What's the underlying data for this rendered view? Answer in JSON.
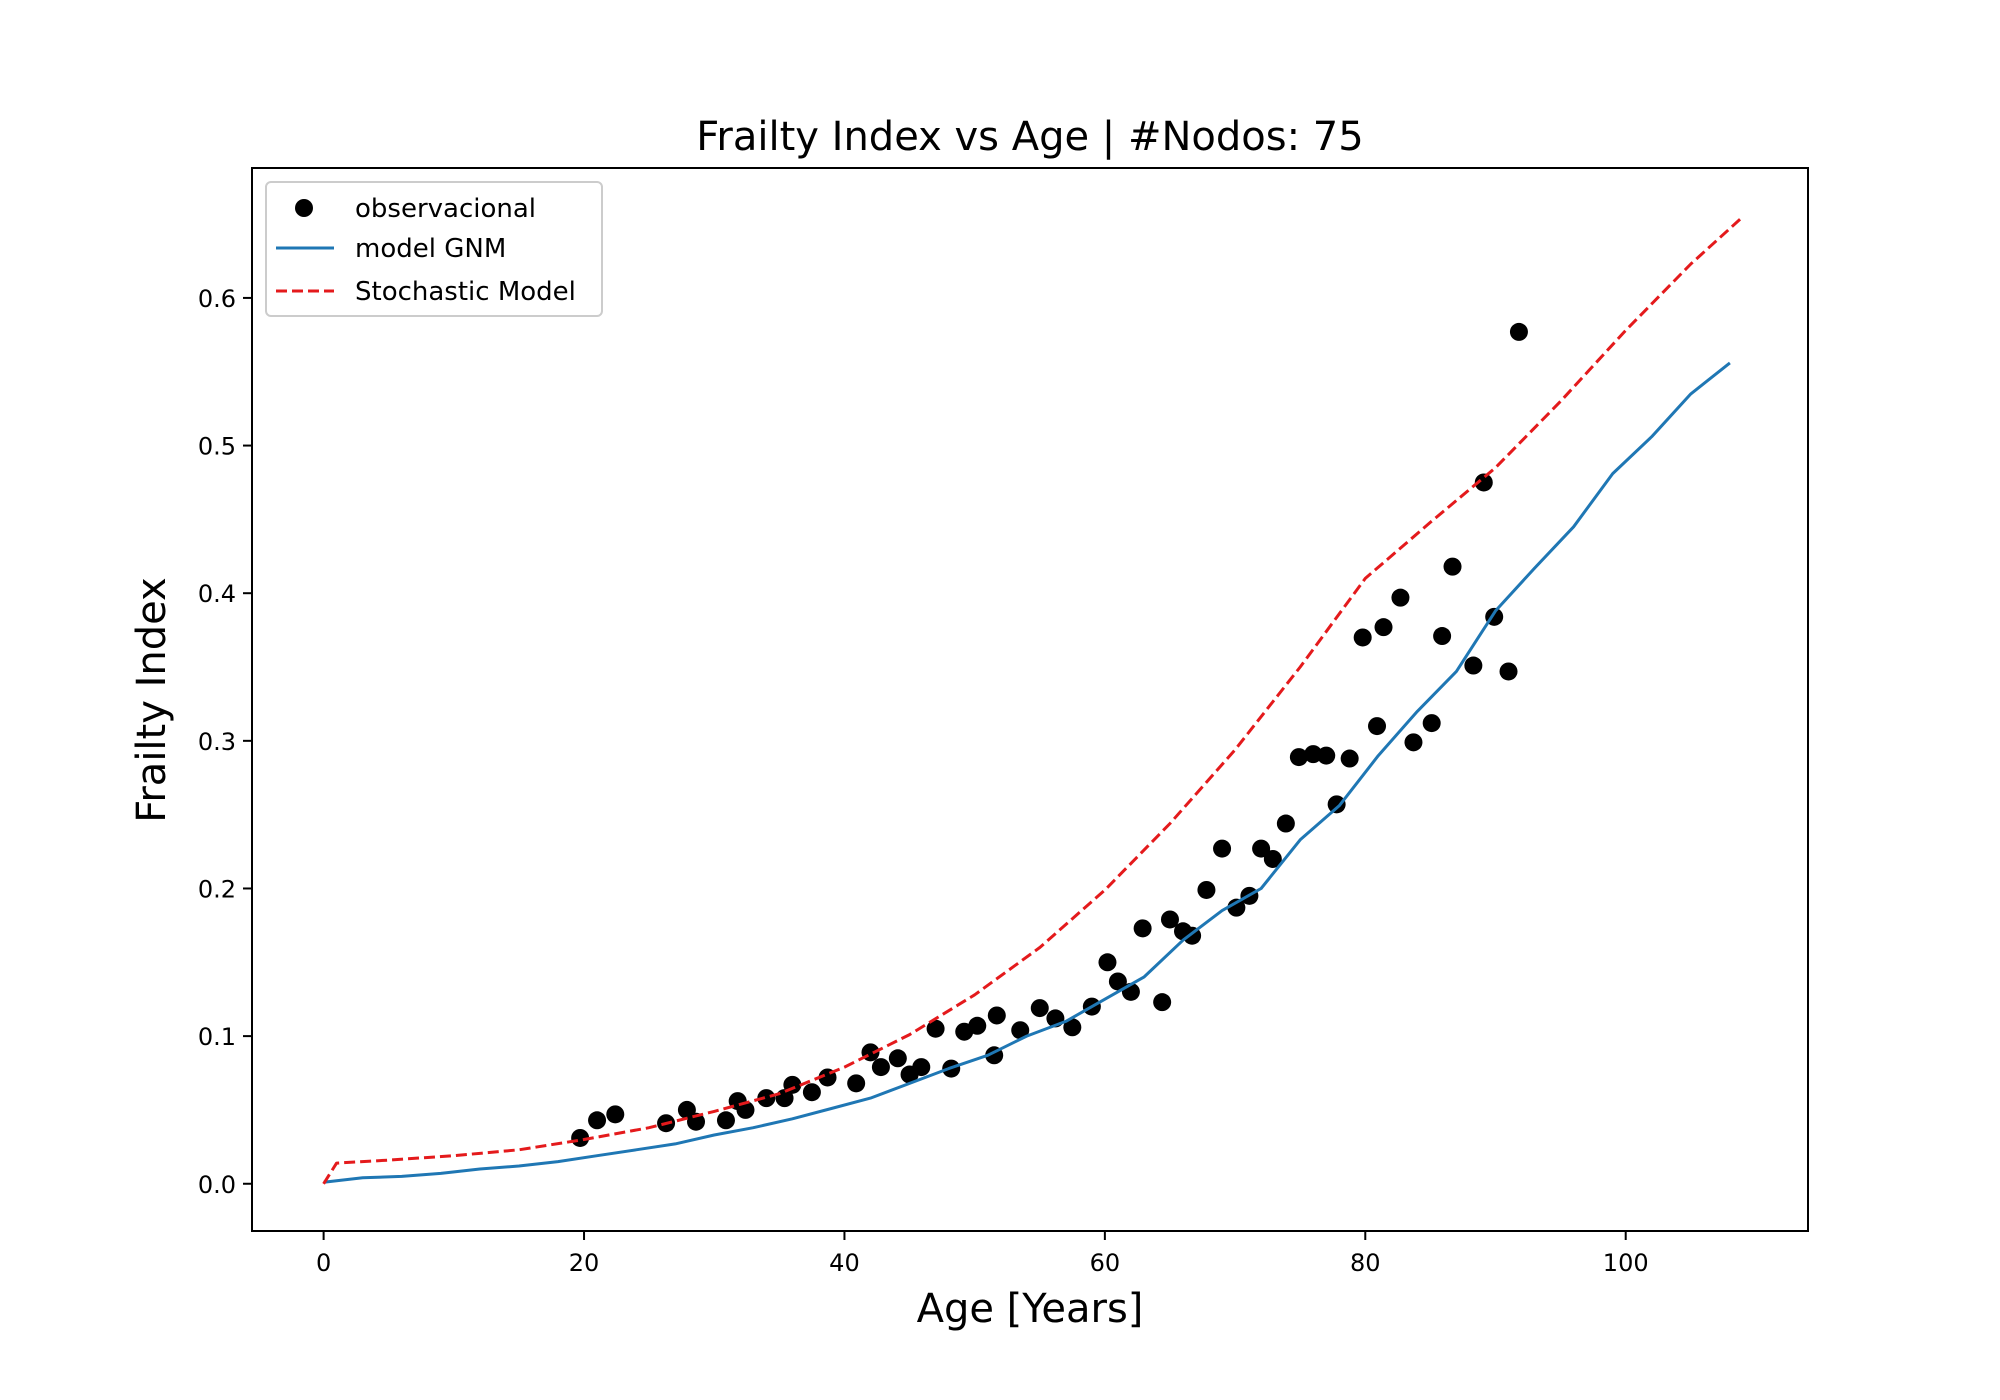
{
  "chart_data": {
    "type": "line",
    "title": "Frailty Index vs Age | #Nodos: 75",
    "xlabel": "Age [Years]",
    "ylabel": "Frailty Index",
    "xlim": [
      -5.5,
      114
    ],
    "ylim": [
      -0.032,
      0.688
    ],
    "xticks": [
      0,
      20,
      40,
      60,
      80,
      100
    ],
    "yticks": [
      0.0,
      0.1,
      0.2,
      0.3,
      0.4,
      0.5,
      0.6
    ],
    "grid": false,
    "legend_position": "top-left",
    "series": [
      {
        "name": "observacional",
        "kind": "scatter",
        "color": "#000000",
        "points": [
          [
            19.7,
            0.031
          ],
          [
            21.0,
            0.043
          ],
          [
            22.4,
            0.047
          ],
          [
            26.3,
            0.041
          ],
          [
            27.9,
            0.05
          ],
          [
            28.6,
            0.042
          ],
          [
            30.9,
            0.043
          ],
          [
            31.8,
            0.056
          ],
          [
            32.4,
            0.05
          ],
          [
            34.0,
            0.058
          ],
          [
            35.4,
            0.058
          ],
          [
            36.0,
            0.067
          ],
          [
            37.5,
            0.062
          ],
          [
            38.7,
            0.072
          ],
          [
            40.9,
            0.068
          ],
          [
            42.0,
            0.089
          ],
          [
            42.8,
            0.079
          ],
          [
            44.1,
            0.085
          ],
          [
            45.0,
            0.074
          ],
          [
            45.9,
            0.079
          ],
          [
            47.0,
            0.105
          ],
          [
            48.2,
            0.078
          ],
          [
            49.2,
            0.103
          ],
          [
            50.2,
            0.107
          ],
          [
            51.5,
            0.087
          ],
          [
            51.7,
            0.114
          ],
          [
            53.5,
            0.104
          ],
          [
            55.0,
            0.119
          ],
          [
            56.2,
            0.112
          ],
          [
            57.5,
            0.106
          ],
          [
            59.0,
            0.12
          ],
          [
            60.2,
            0.15
          ],
          [
            61.0,
            0.137
          ],
          [
            62.0,
            0.13
          ],
          [
            62.9,
            0.173
          ],
          [
            64.4,
            0.123
          ],
          [
            65.0,
            0.179
          ],
          [
            66.0,
            0.171
          ],
          [
            66.7,
            0.168
          ],
          [
            67.8,
            0.199
          ],
          [
            69.0,
            0.227
          ],
          [
            70.1,
            0.187
          ],
          [
            71.1,
            0.195
          ],
          [
            72.0,
            0.227
          ],
          [
            72.9,
            0.22
          ],
          [
            73.9,
            0.244
          ],
          [
            74.9,
            0.289
          ],
          [
            76.0,
            0.291
          ],
          [
            77.0,
            0.29
          ],
          [
            77.8,
            0.257
          ],
          [
            78.8,
            0.288
          ],
          [
            79.8,
            0.37
          ],
          [
            80.9,
            0.31
          ],
          [
            81.4,
            0.377
          ],
          [
            82.7,
            0.397
          ],
          [
            83.7,
            0.299
          ],
          [
            85.1,
            0.312
          ],
          [
            85.9,
            0.371
          ],
          [
            86.7,
            0.418
          ],
          [
            88.3,
            0.351
          ],
          [
            89.1,
            0.475
          ],
          [
            89.9,
            0.384
          ],
          [
            91.0,
            0.347
          ],
          [
            91.8,
            0.577
          ]
        ]
      },
      {
        "name": "model GNM",
        "kind": "line",
        "color": "#1f77b4",
        "points": [
          [
            0,
            0.001
          ],
          [
            3,
            0.004
          ],
          [
            6,
            0.005
          ],
          [
            9,
            0.007
          ],
          [
            12,
            0.01
          ],
          [
            15,
            0.012
          ],
          [
            18,
            0.015
          ],
          [
            21,
            0.019
          ],
          [
            24,
            0.023
          ],
          [
            27,
            0.027
          ],
          [
            30,
            0.033
          ],
          [
            33,
            0.038
          ],
          [
            36,
            0.044
          ],
          [
            39,
            0.051
          ],
          [
            42,
            0.058
          ],
          [
            45,
            0.068
          ],
          [
            48,
            0.078
          ],
          [
            51,
            0.087
          ],
          [
            54,
            0.1
          ],
          [
            57,
            0.11
          ],
          [
            60,
            0.125
          ],
          [
            63,
            0.14
          ],
          [
            66,
            0.165
          ],
          [
            69,
            0.185
          ],
          [
            72,
            0.2
          ],
          [
            75,
            0.233
          ],
          [
            78,
            0.256
          ],
          [
            81,
            0.29
          ],
          [
            84,
            0.32
          ],
          [
            87,
            0.347
          ],
          [
            90,
            0.388
          ],
          [
            93,
            0.417
          ],
          [
            96,
            0.445
          ],
          [
            99,
            0.481
          ],
          [
            102,
            0.506
          ],
          [
            105,
            0.535
          ],
          [
            108,
            0.556
          ]
        ]
      },
      {
        "name": "Stochastic Model",
        "kind": "dashed-line",
        "color": "#e41a1c",
        "points": [
          [
            0,
            0.0
          ],
          [
            1,
            0.014
          ],
          [
            5,
            0.016
          ],
          [
            10,
            0.019
          ],
          [
            15,
            0.023
          ],
          [
            20,
            0.03
          ],
          [
            25,
            0.038
          ],
          [
            30,
            0.049
          ],
          [
            35,
            0.061
          ],
          [
            40,
            0.079
          ],
          [
            45,
            0.101
          ],
          [
            50,
            0.128
          ],
          [
            55,
            0.16
          ],
          [
            60,
            0.199
          ],
          [
            65,
            0.244
          ],
          [
            70,
            0.294
          ],
          [
            75,
            0.35
          ],
          [
            80,
            0.41
          ],
          [
            85,
            0.448
          ],
          [
            90,
            0.485
          ],
          [
            95,
            0.53
          ],
          [
            100,
            0.578
          ],
          [
            105,
            0.623
          ],
          [
            109,
            0.655
          ]
        ]
      }
    ]
  }
}
